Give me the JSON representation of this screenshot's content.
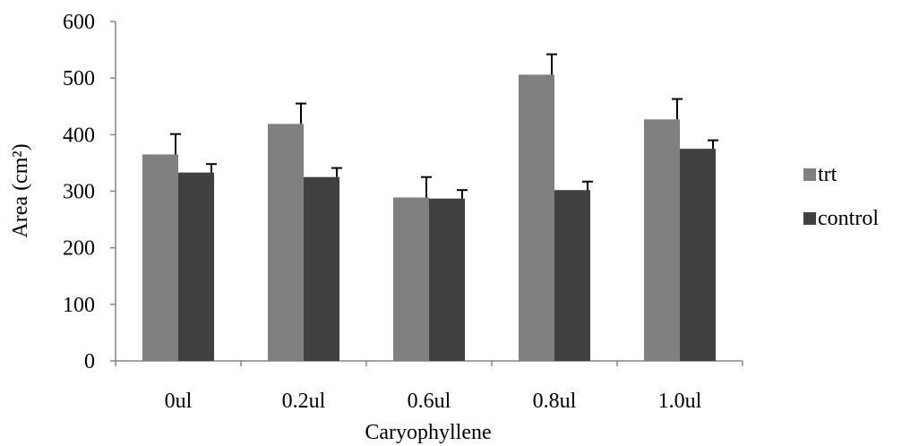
{
  "chart_data": {
    "type": "bar",
    "categories": [
      "0ul",
      "0.2ul",
      "0.6ul",
      "0.8ul",
      "1.0ul"
    ],
    "series": [
      {
        "name": "trt",
        "color": "#808080",
        "values": [
          365,
          419,
          289,
          506,
          427
        ],
        "errors": [
          36,
          36,
          36,
          36,
          36
        ]
      },
      {
        "name": "control",
        "color": "#404040",
        "values": [
          333,
          325,
          287,
          302,
          375
        ],
        "errors": [
          15,
          16,
          15,
          15,
          15
        ]
      }
    ],
    "xlabel": "Caryophyllene",
    "ylabel": "Area (cm²)",
    "ylim": [
      0,
      600
    ],
    "yticks": [
      "0",
      "100",
      "200",
      "300",
      "400",
      "500",
      "600"
    ],
    "legend_position": "right",
    "grid": false
  }
}
